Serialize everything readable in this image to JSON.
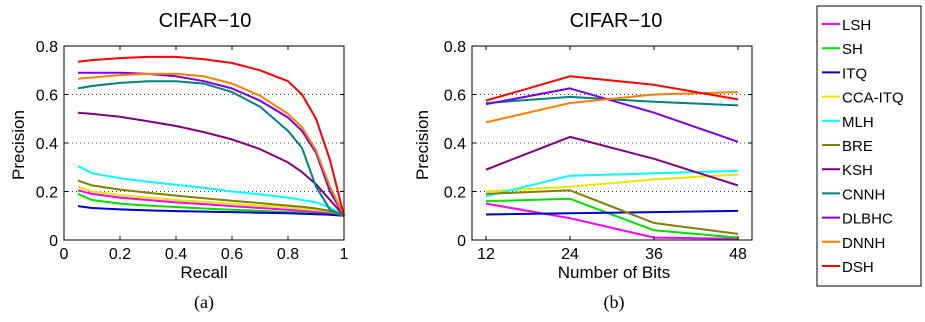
{
  "chart_data": [
    {
      "id": "a",
      "type": "line",
      "title": "CIFAR−10",
      "xlabel": "Recall",
      "ylabel": "Precision",
      "caption": "(a)",
      "xlim": [
        0,
        1
      ],
      "ylim": [
        0,
        0.8
      ],
      "x_ticks": [
        "0",
        "0.2",
        "0.4",
        "0.6",
        "0.8",
        "1"
      ],
      "x_tick_values": [
        0,
        0.2,
        0.4,
        0.6,
        0.8,
        1
      ],
      "y_ticks": [
        "0",
        "0.2",
        "0.4",
        "0.6",
        "0.8"
      ],
      "y_tick_values": [
        0,
        0.2,
        0.4,
        0.6,
        0.8
      ],
      "grid": "dotted-horizontal",
      "x": [
        0.05,
        0.1,
        0.2,
        0.3,
        0.4,
        0.5,
        0.6,
        0.7,
        0.8,
        0.85,
        0.9,
        0.95,
        1.0
      ],
      "series": [
        {
          "name": "LSH",
          "color": "#ff00ff",
          "values": [
            0.205,
            0.19,
            0.175,
            0.165,
            0.155,
            0.148,
            0.14,
            0.132,
            0.125,
            0.12,
            0.115,
            0.11,
            0.1
          ]
        },
        {
          "name": "SH",
          "color": "#00dd00",
          "values": [
            0.19,
            0.165,
            0.15,
            0.142,
            0.136,
            0.13,
            0.125,
            0.12,
            0.115,
            0.112,
            0.108,
            0.105,
            0.1
          ]
        },
        {
          "name": "ITQ",
          "color": "#0000cc",
          "values": [
            0.14,
            0.132,
            0.126,
            0.122,
            0.119,
            0.117,
            0.115,
            0.112,
            0.11,
            0.108,
            0.106,
            0.104,
            0.1
          ]
        },
        {
          "name": "CCA-ITQ",
          "color": "#e6e600",
          "values": [
            0.22,
            0.2,
            0.185,
            0.175,
            0.165,
            0.157,
            0.15,
            0.142,
            0.135,
            0.13,
            0.125,
            0.118,
            0.1
          ]
        },
        {
          "name": "MLH",
          "color": "#00ffff",
          "values": [
            0.305,
            0.275,
            0.255,
            0.24,
            0.228,
            0.215,
            0.2,
            0.188,
            0.175,
            0.165,
            0.155,
            0.135,
            0.1
          ]
        },
        {
          "name": "BRE",
          "color": "#808000",
          "values": [
            0.245,
            0.225,
            0.208,
            0.195,
            0.183,
            0.172,
            0.162,
            0.152,
            0.142,
            0.137,
            0.13,
            0.12,
            0.1
          ]
        },
        {
          "name": "KSH",
          "color": "#800080",
          "values": [
            0.525,
            0.52,
            0.508,
            0.49,
            0.47,
            0.445,
            0.415,
            0.375,
            0.32,
            0.28,
            0.23,
            0.165,
            0.1
          ]
        },
        {
          "name": "CNNH",
          "color": "#008080",
          "values": [
            0.625,
            0.635,
            0.648,
            0.655,
            0.655,
            0.645,
            0.61,
            0.55,
            0.45,
            0.38,
            0.22,
            0.125,
            0.1
          ]
        },
        {
          "name": "DLBHC",
          "color": "#7a00e6",
          "values": [
            0.69,
            0.69,
            0.69,
            0.685,
            0.675,
            0.655,
            0.625,
            0.575,
            0.505,
            0.45,
            0.36,
            0.2,
            0.1
          ]
        },
        {
          "name": "DNNH",
          "color": "#ff8000",
          "values": [
            0.665,
            0.67,
            0.68,
            0.685,
            0.685,
            0.675,
            0.645,
            0.595,
            0.52,
            0.465,
            0.37,
            0.22,
            0.1
          ]
        },
        {
          "name": "DSH",
          "color": "#ff0000",
          "values": [
            0.735,
            0.742,
            0.75,
            0.755,
            0.755,
            0.745,
            0.73,
            0.7,
            0.655,
            0.6,
            0.5,
            0.33,
            0.1
          ]
        }
      ]
    },
    {
      "id": "b",
      "type": "line",
      "title": "CIFAR−10",
      "xlabel": "Number of Bits",
      "ylabel": "Precision",
      "caption": "(b)",
      "xlim": [
        10,
        50
      ],
      "ylim": [
        0,
        0.8
      ],
      "x_ticks": [
        "12",
        "24",
        "36",
        "48"
      ],
      "x_tick_values": [
        12,
        24,
        36,
        48
      ],
      "y_ticks": [
        "0",
        "0.2",
        "0.4",
        "0.6",
        "0.8"
      ],
      "y_tick_values": [
        0,
        0.2,
        0.4,
        0.6,
        0.8
      ],
      "grid": "dotted-horizontal",
      "x": [
        12,
        24,
        36,
        48
      ],
      "series": [
        {
          "name": "LSH",
          "color": "#ff00ff",
          "values": [
            0.15,
            0.09,
            0.01,
            0.005
          ]
        },
        {
          "name": "SH",
          "color": "#00dd00",
          "values": [
            0.16,
            0.17,
            0.04,
            0.01
          ]
        },
        {
          "name": "ITQ",
          "color": "#0000cc",
          "values": [
            0.105,
            0.11,
            0.115,
            0.12
          ]
        },
        {
          "name": "CCA-ITQ",
          "color": "#e6e600",
          "values": [
            0.2,
            0.22,
            0.25,
            0.27
          ]
        },
        {
          "name": "MLH",
          "color": "#00ffff",
          "values": [
            0.18,
            0.265,
            0.275,
            0.285
          ]
        },
        {
          "name": "BRE",
          "color": "#808000",
          "values": [
            0.19,
            0.205,
            0.07,
            0.025
          ]
        },
        {
          "name": "KSH",
          "color": "#800080",
          "values": [
            0.29,
            0.425,
            0.335,
            0.225
          ]
        },
        {
          "name": "CNNH",
          "color": "#008080",
          "values": [
            0.565,
            0.59,
            0.57,
            0.555
          ]
        },
        {
          "name": "DLBHC",
          "color": "#7a00e6",
          "values": [
            0.56,
            0.625,
            0.525,
            0.405
          ]
        },
        {
          "name": "DNNH",
          "color": "#ff8000",
          "values": [
            0.485,
            0.565,
            0.6,
            0.61
          ]
        },
        {
          "name": "DSH",
          "color": "#ff0000",
          "values": [
            0.575,
            0.675,
            0.64,
            0.58
          ]
        }
      ]
    }
  ],
  "legend": {
    "placement": "right",
    "entries": [
      {
        "label": "LSH",
        "color": "#ff00ff"
      },
      {
        "label": "SH",
        "color": "#00dd00"
      },
      {
        "label": "ITQ",
        "color": "#0000cc"
      },
      {
        "label": "CCA-ITQ",
        "color": "#e6e600"
      },
      {
        "label": "MLH",
        "color": "#00ffff"
      },
      {
        "label": "BRE",
        "color": "#808000"
      },
      {
        "label": "KSH",
        "color": "#800080"
      },
      {
        "label": "CNNH",
        "color": "#008080"
      },
      {
        "label": "DLBHC",
        "color": "#7a00e6"
      },
      {
        "label": "DNNH",
        "color": "#ff8000"
      },
      {
        "label": "DSH",
        "color": "#ff0000"
      }
    ]
  }
}
